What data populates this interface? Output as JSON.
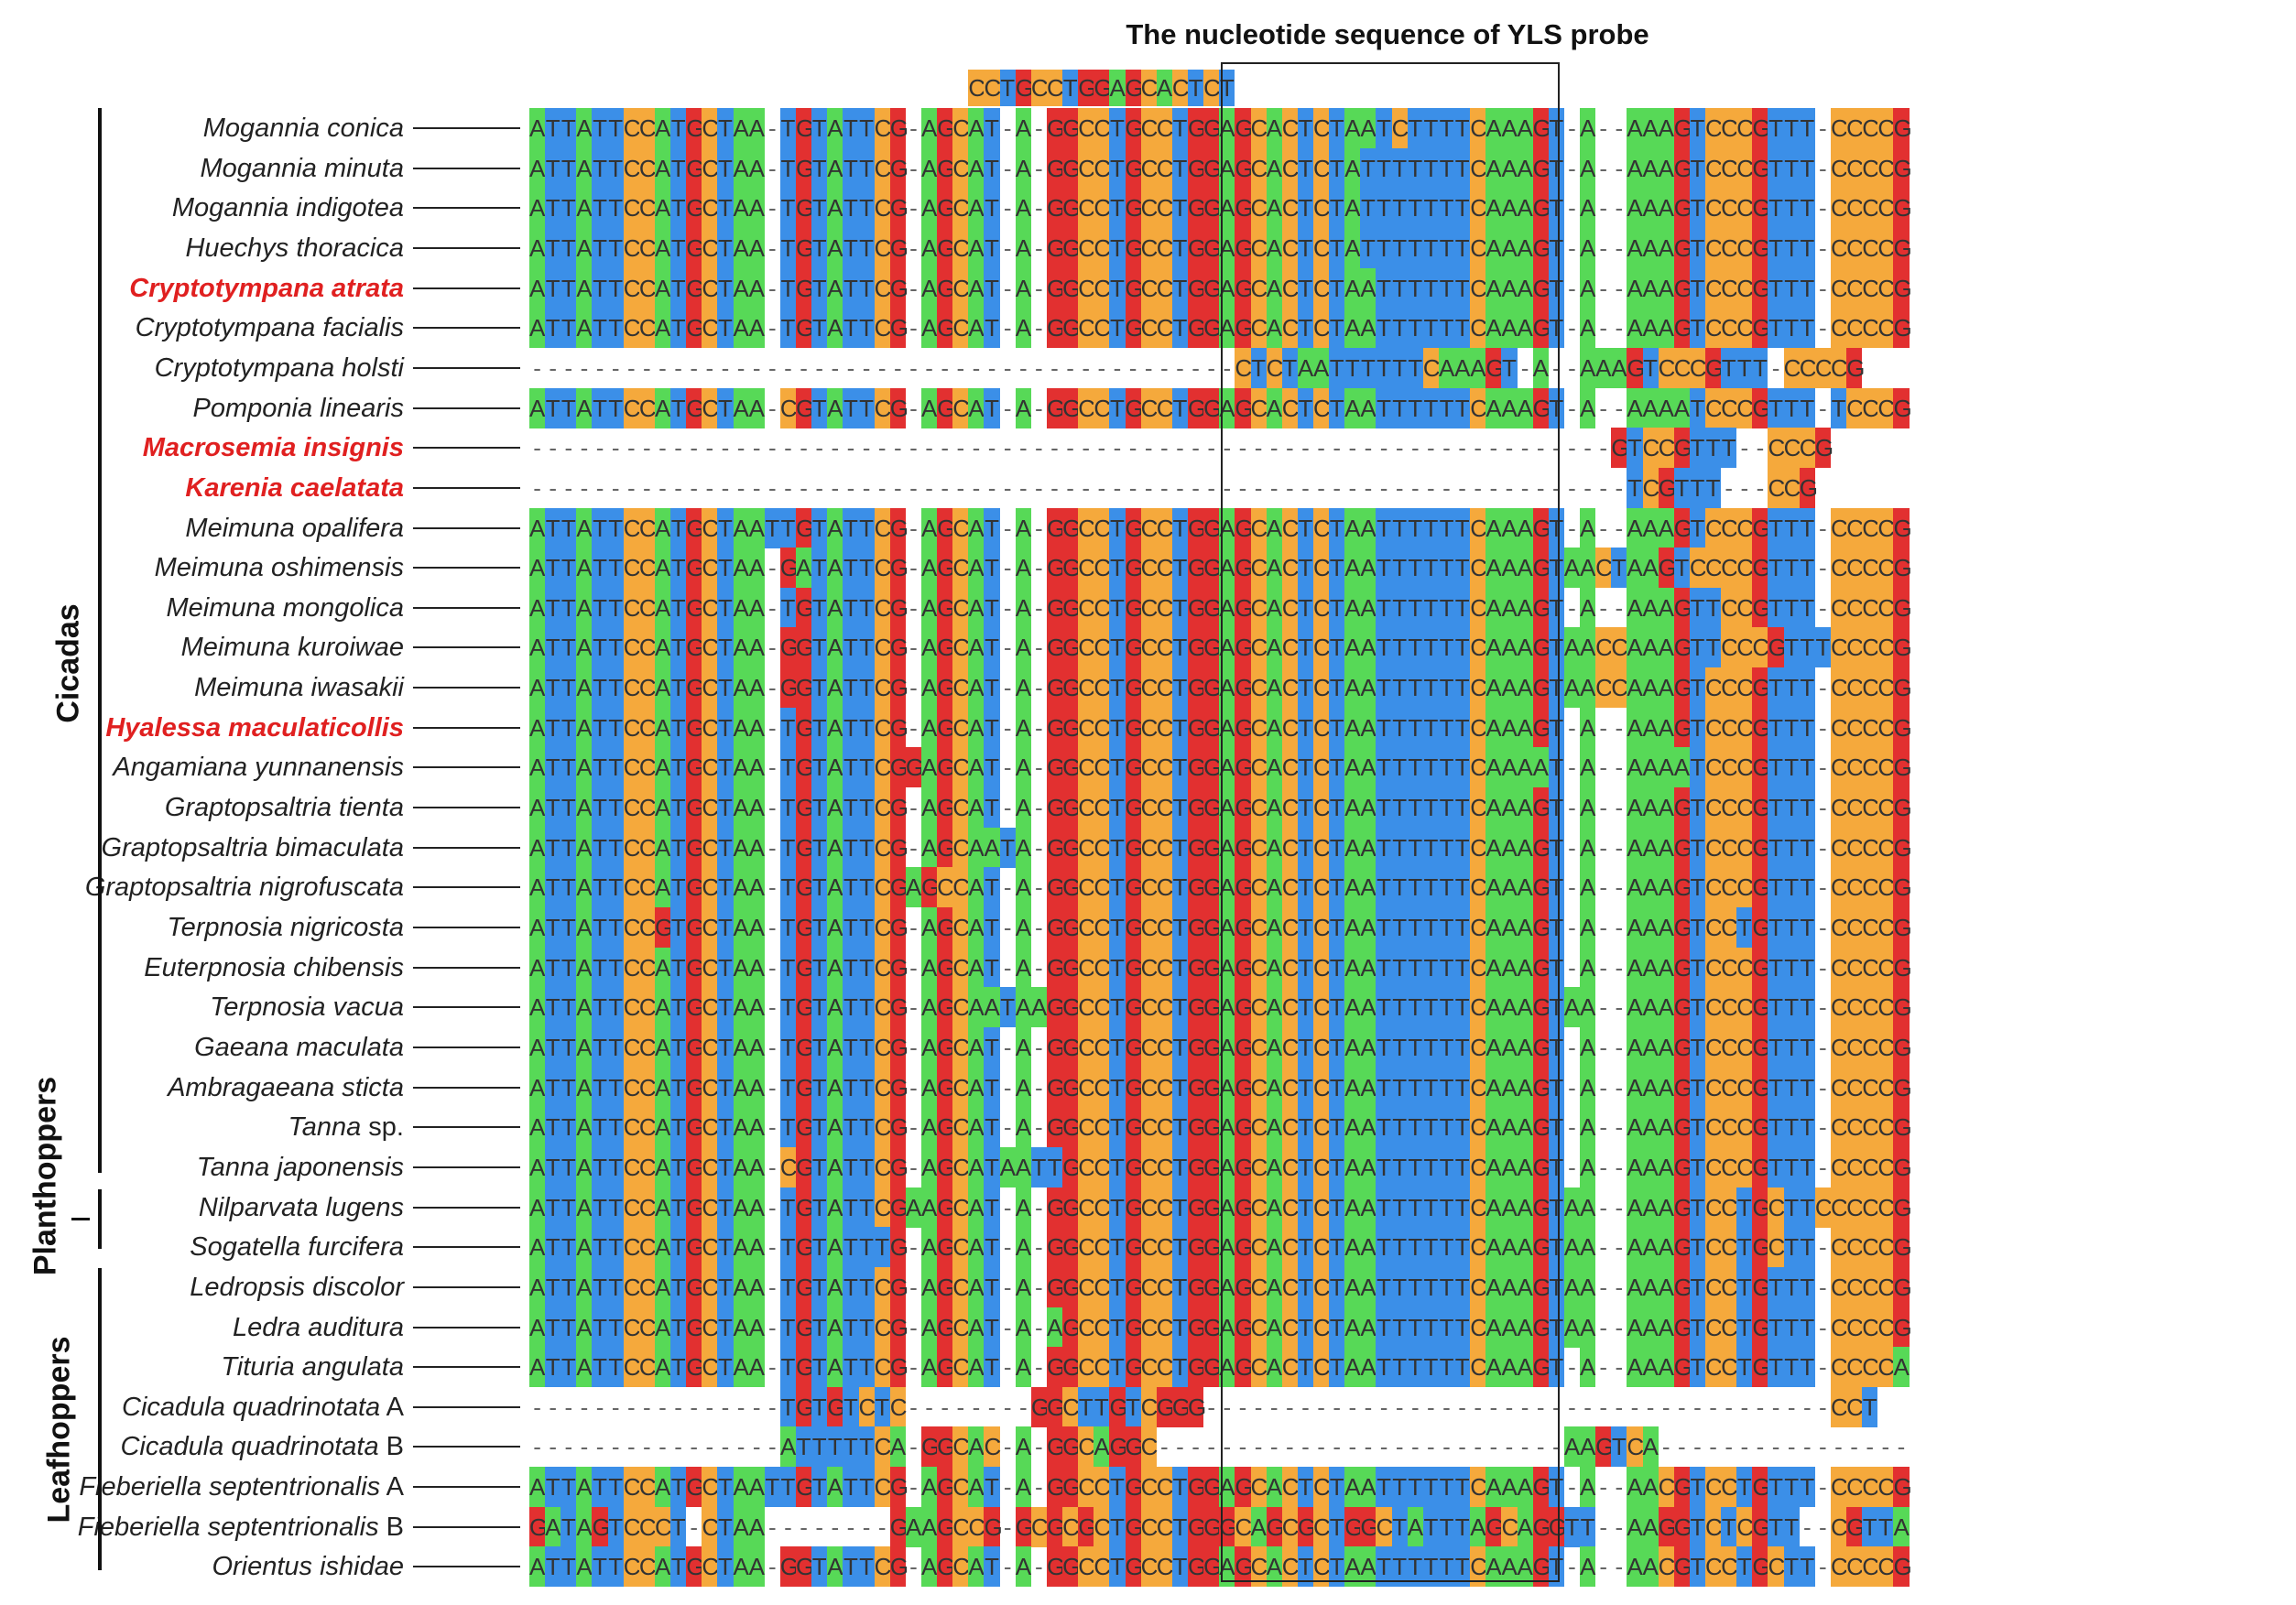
{
  "title": "The nucleotide sequence of YLS probe",
  "probe_sequence": "CCTGCCTGGAGCACTCT",
  "groups": {
    "cicadas": "Cicadas",
    "planthoppers": "Planthoppers",
    "leafhoppers": "Leafhoppers"
  },
  "colors": {
    "A": "#57d957",
    "T": "#3b8fe8",
    "C": "#f5a93c",
    "G": "#e23030"
  },
  "taxa": [
    {
      "name": "Mogannia conica",
      "highlight": false,
      "seq": "ATTATTCCATGCTAA-TGTATTCG-AGCAT-A-GGCCTGCCTGGAGCACTCTAATCTTTTCAAAGT-A--AAAGTCCCGTTT-CCCCG"
    },
    {
      "name": "Mogannia minuta",
      "highlight": false,
      "seq": "ATTATTCCATGCTAA-TGTATTCG-AGCAT-A-GGCCTGCCTGGAGCACTCTATTTTTTTCAAAGT-A--AAAGTCCCGTTT-CCCCG"
    },
    {
      "name": "Mogannia indigotea",
      "highlight": false,
      "seq": "ATTATTCCATGCTAA-TGTATTCG-AGCAT-A-GGCCTGCCTGGAGCACTCTATTTTTTTCAAAGT-A--AAAGTCCCGTTT-CCCCG"
    },
    {
      "name": "Huechys thoracica",
      "highlight": false,
      "seq": "ATTATTCCATGCTAA-TGTATTCG-AGCAT-A-GGCCTGCCTGGAGCACTCTATTTTTTTCAAAGT-A--AAAGTCCCGTTT-CCCCG"
    },
    {
      "name": "Cryptotympana atrata",
      "highlight": true,
      "seq": "ATTATTCCATGCTAA-TGTATTCG-AGCAT-A-GGCCTGCCTGGAGCACTCTAATTTTTTCAAAGT-A--AAAGTCCCGTTT-CCCCG"
    },
    {
      "name": "Cryptotympana facialis",
      "highlight": false,
      "seq": "ATTATTCCATGCTAA-TGTATTCG-AGCAT-A-GGCCTGCCTGGAGCACTCTAATTTTTTCAAAGT-A--AAAGTCCCGTTT-CCCCG"
    },
    {
      "name": "Cryptotympana holsti",
      "highlight": false,
      "seq": "---------------------------------------------CTCTAATTTTTTCAAAGT-A--AAAGTCCCGTTT-CCCCG"
    },
    {
      "name": "Pomponia linearis",
      "highlight": false,
      "seq": "ATTATTCCATGCTAA-CGTATTCG-AGCAT-A-GGCCTGCCTGGAGCACTCTAATTTTTTCAAAGT-A--AAAATCCCGTTT-TCCCG"
    },
    {
      "name": "Macrosemia insignis",
      "highlight": true,
      "seq": "---------------------------------------------------------------------GTCCGTTT--CCCG"
    },
    {
      "name": "Karenia caelatata",
      "highlight": true,
      "seq": "----------------------------------------------------------------------TCGTTT---CCG"
    },
    {
      "name": "Meimuna opalifera",
      "highlight": false,
      "seq": "ATTATTCCATGCTAATTGTATTCG-AGCAT-A-GGCCTGCCTGGAGCACTCTAATTTTTTCAAAGT-A--AAAGTCCCGTTT-CCCCG"
    },
    {
      "name": "Meimuna oshimensis",
      "highlight": false,
      "seq": "ATTATTCCATGCTAA-GATATTCG-AGCAT-A-GGCCTGCCTGGAGCACTCTAATTTTTTCAAAGTAACTAAGTCCCCGTTT-CCCCG"
    },
    {
      "name": "Meimuna mongolica",
      "highlight": false,
      "seq": "ATTATTCCATGCTAA-TGTATTCG-AGCAT-A-GGCCTGCCTGGAGCACTCTAATTTTTTCAAAGT-A--AAAGTTCCGTTT-CCCCG"
    },
    {
      "name": "Meimuna kuroiwae",
      "highlight": false,
      "seq": "ATTATTCCATGCTAA-GGTATTCG-AGCAT-A-GGCCTGCCTGGAGCACTCTAATTTTTTCAAAGTAACCAAAGTTCCCGTTTCCCCG"
    },
    {
      "name": "Meimuna iwasakii",
      "highlight": false,
      "seq": "ATTATTCCATGCTAA-GGTATTCG-AGCAT-A-GGCCTGCCTGGAGCACTCTAATTTTTTCAAAGTAACCAAAGTCCCGTTT-CCCCG"
    },
    {
      "name": "Hyalessa maculaticollis",
      "highlight": true,
      "seq": "ATTATTCCATGCTAA-TGTATTCG-AGCAT-A-GGCCTGCCTGGAGCACTCTAATTTTTTCAAAGT-A--AAAGTCCCGTTT-CCCCG"
    },
    {
      "name": "Angamiana yunnanensis",
      "highlight": false,
      "seq": "ATTATTCCATGCTAA-TGTATTCGGAGCAT-A-GGCCTGCCTGGAGCACTCTAATTTTTTCAAAAT-A--AAAATCCCGTTT-CCCCG"
    },
    {
      "name": "Graptopsaltria tienta",
      "highlight": false,
      "seq": "ATTATTCCATGCTAA-TGTATTCG-AGCAT-A-GGCCTGCCTGGAGCACTCTAATTTTTTCAAAGT-A--AAAGTCCCGTTT-CCCCG"
    },
    {
      "name": "Graptopsaltria bimaculata",
      "highlight": false,
      "seq": "ATTATTCCATGCTAA-TGTATTCG-AGCAATA-GGCCTGCCTGGAGCACTCTAATTTTTTCAAAGT-A--AAAGTCCCGTTT-CCCCG"
    },
    {
      "name": "Graptopsaltria nigrofuscata",
      "highlight": false,
      "seq": "ATTATTCCATGCTAA-TGTATTCGAGCCAT-A-GGCCTGCCTGGAGCACTCTAATTTTTTCAAAGT-A--AAAGTCCCGTTT-CCCCG"
    },
    {
      "name": "Terpnosia nigricosta",
      "highlight": false,
      "seq": "ATTATTCCGTGCTAA-TGTATTCG-AGCAT-A-GGCCTGCCTGGAGCACTCTAATTTTTTCAAAGT-A--AAAGTCCTGTTT-CCCCG"
    },
    {
      "name": "Euterpnosia chibensis",
      "highlight": false,
      "seq": "ATTATTCCATGCTAA-TGTATTCG-AGCAT-A-GGCCTGCCTGGAGCACTCTAATTTTTTCAAAGT-A--AAAGTCCCGTTT-CCCCG"
    },
    {
      "name": "Terpnosia vacua",
      "highlight": false,
      "seq": "ATTATTCCATGCTAA-TGTATTCG-AGCAATAAGGCCTGCCTGGAGCACTCTAATTTTTTCAAAGTAA--AAAGTCCCGTTT-CCCCG"
    },
    {
      "name": "Gaeana maculata",
      "highlight": false,
      "seq": "ATTATTCCATGCTAA-TGTATTCG-AGCAT-A-GGCCTGCCTGGAGCACTCTAATTTTTTCAAAGT-A--AAAGTCCCGTTT-CCCCG"
    },
    {
      "name": "Ambragaeana sticta",
      "highlight": false,
      "seq": "ATTATTCCATGCTAA-TGTATTCG-AGCAT-A-GGCCTGCCTGGAGCACTCTAATTTTTTCAAAGT-A--AAAGTCCCGTTT-CCCCG"
    },
    {
      "name": "Tanna",
      "suffix": " sp.",
      "highlight": false,
      "seq": "ATTATTCCATGCTAA-TGTATTCG-AGCAT-A-GGCCTGCCTGGAGCACTCTAATTTTTTCAAAGT-A--AAAGTCCCGTTT-CCCCG"
    },
    {
      "name": "Tanna japonensis",
      "highlight": false,
      "seq": "ATTATTCCATGCTAA-CGTATTCG-AGCATAATTGCCTGCCTGGAGCACTCTAATTTTTTCAAAGT-A--AAAGTCCCGTTT-CCCCG"
    },
    {
      "name": "Nilparvata lugens",
      "highlight": false,
      "seq": "ATTATTCCATGCTAA-TGTATTCGAAGCAT-A-GGCCTGCCTGGAGCACTCTAATTTTTTCAAAGTAA--AAAGTCCTGCTTCCCCCG"
    },
    {
      "name": "Sogatella furcifera",
      "highlight": false,
      "seq": "ATTATTCCATGCTAA-TGTATTTG-AGCAT-A-GGCCTGCCTGGAGCACTCTAATTTTTTCAAAGTAA--AAAGTCCTGCTT-CCCCG"
    },
    {
      "name": "Ledropsis discolor",
      "highlight": false,
      "seq": "ATTATTCCATGCTAA-TGTATTCG-AGCAT-A-GGCCTGCCTGGAGCACTCTAATTTTTTCAAAGTAA--AAAGTCCTGTTT-CCCCG"
    },
    {
      "name": "Ledra auditura",
      "highlight": false,
      "seq": "ATTATTCCATGCTAA-TGTATTCG-AGCAT-A-AGCCTGCCTGGAGCACTCTAATTTTTTCAAAGTAA--AAAGTCCTGTTT-CCCCG"
    },
    {
      "name": "Tituria angulata",
      "highlight": false,
      "seq": "ATTATTCCATGCTAA-TGTATTCG-AGCAT-A-GGCCTGCCTGGAGCACTCTAATTTTTTCAAAGT-A--AAAGTCCTGTTT-CCCCA"
    },
    {
      "name": "Cicadula quadrinotata",
      "suffix": " A",
      "highlight": false,
      "seq": "----------------TGTGTCTC--------GGCTTGTCGGG----------------------------------------CCT"
    },
    {
      "name": "Cicadula quadrinotata",
      "suffix": " B",
      "highlight": false,
      "seq": "----------------ATTTTTCA-GGCAC-A-GGCAGGC--------------------------AAGTCA----------------"
    },
    {
      "name": "Fieberiella septentrionalis",
      "suffix": " A",
      "highlight": false,
      "seq": "ATTATTCCATGCTAATTGTATTCG-AGCAT-A-GGCCTGCCTGGAGCACTCTAATTTTTTCAAAGT-A--AACGTCCTGTTT-CCCCG"
    },
    {
      "name": "Fieberiella septentrionalis",
      "suffix": " B",
      "highlight": false,
      "seq": "GATAGTCCCT-CTAA--------GAAGCCG-GCGCGCTGCCTGGGCAGCGCTGGCTATTTAGCAGGTT--AAGGTCTCGTT--CGTTA"
    },
    {
      "name": "Orientus ishidae",
      "highlight": false,
      "seq": "ATTATTCCATGCTAA-GGTATTCG-AGCAT-A-GGCCTGCCTGGAGCACTCTAATTTTTTCAAAGT-A--AACGTCCTGCTT-CCCCG"
    }
  ]
}
